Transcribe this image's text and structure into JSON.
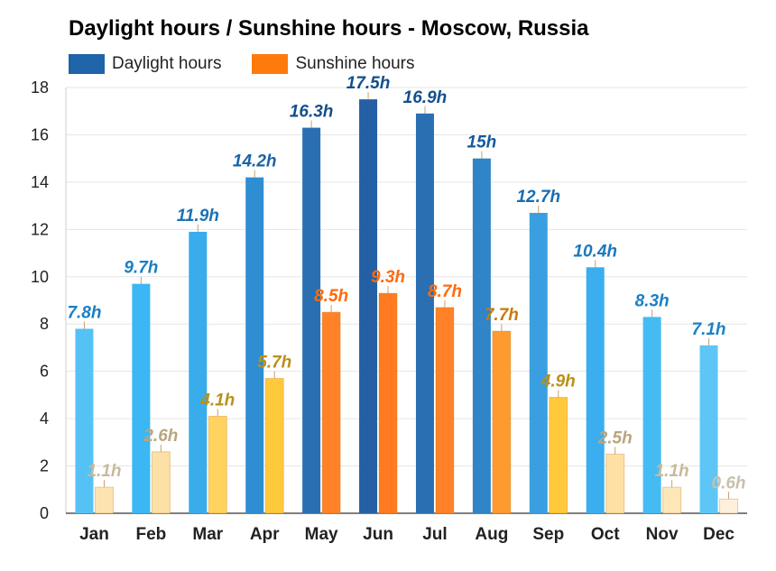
{
  "chart_data": {
    "type": "bar",
    "title": "Daylight hours / Sunshine hours - Moscow, Russia",
    "xlabel": "",
    "ylabel": "",
    "ylim": [
      0,
      18
    ],
    "yticks": [
      0,
      2,
      4,
      6,
      8,
      10,
      12,
      14,
      16,
      18
    ],
    "grid": true,
    "legend_position": "top-left",
    "categories": [
      "Jan",
      "Feb",
      "Mar",
      "Apr",
      "May",
      "Jun",
      "Jul",
      "Aug",
      "Sep",
      "Oct",
      "Nov",
      "Dec"
    ],
    "series": [
      {
        "name": "Daylight hours",
        "legend_color": "#1f63a8",
        "values": [
          7.8,
          9.7,
          11.9,
          14.2,
          16.3,
          17.5,
          16.9,
          15,
          12.7,
          10.4,
          8.3,
          7.1
        ],
        "labels": [
          "7.8h",
          "9.7h",
          "11.9h",
          "14.2h",
          "16.3h",
          "17.5h",
          "16.9h",
          "15h",
          "12.7h",
          "10.4h",
          "8.3h",
          "7.1h"
        ],
        "colors": [
          "#55c2f6",
          "#3ab7f4",
          "#39acec",
          "#2f8ed2",
          "#2a6fb2",
          "#2560a4",
          "#2a6fb2",
          "#2f85c8",
          "#3a9fe0",
          "#3aaeee",
          "#45bbf4",
          "#5ec6f7"
        ],
        "label_colors": [
          "#1a7fc4",
          "#1a7fc4",
          "#1a72b8",
          "#1a64a6",
          "#124f8c",
          "#124f8c",
          "#124f8c",
          "#155a9c",
          "#1a6cb0",
          "#1a78bd",
          "#1a7fc4",
          "#1a82c6"
        ]
      },
      {
        "name": "Sunshine hours",
        "legend_color": "#ff7a0c",
        "values": [
          1.1,
          2.6,
          4.1,
          5.7,
          8.5,
          9.3,
          8.7,
          7.7,
          4.9,
          2.5,
          1.1,
          0.6
        ],
        "labels": [
          "1.1h",
          "2.6h",
          "4.1h",
          "5.7h",
          "8.5h",
          "9.3h",
          "8.7h",
          "7.7h",
          "4.9h",
          "2.5h",
          "1.1h",
          "0.6h"
        ],
        "colors": [
          "#fde3b0",
          "#fde0a6",
          "#ffd35e",
          "#ffc93c",
          "#ff8229",
          "#ff7a20",
          "#ff8229",
          "#ff9a2e",
          "#ffc93c",
          "#fee0a5",
          "#fde6b8",
          "#fdf0dc"
        ],
        "label_colors": [
          "#c8b99a",
          "#b8a580",
          "#b8901a",
          "#b8901a",
          "#ff6a0c",
          "#ff6a0c",
          "#ff6a0c",
          "#c87a0a",
          "#b8901a",
          "#b8a580",
          "#c8b99a",
          "#c8bfad"
        ]
      }
    ]
  }
}
